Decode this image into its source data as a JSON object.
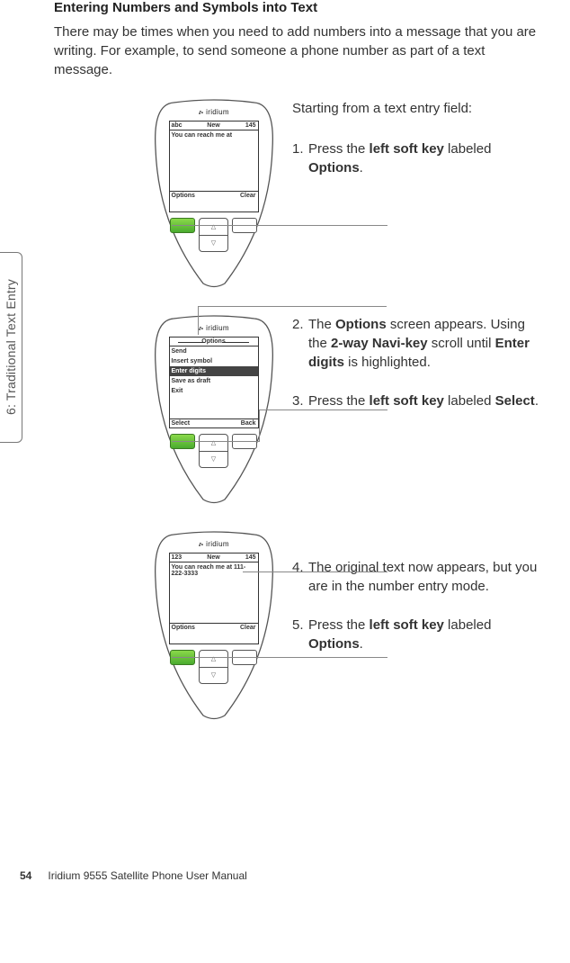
{
  "heading": "Entering Numbers and Symbols into Text",
  "intro": "There may be times when you need to add numbers into a message that you are writing. For example, to send someone a phone number as part of a text message.",
  "side_tab": "6: Traditional Text Entry",
  "brand": "iridium",
  "lead": "Starting from a text entry field:",
  "screen1": {
    "mode": "abc",
    "title": "New",
    "count": "145",
    "body": "You can reach me at",
    "foot_left": "Options",
    "foot_right": "Clear"
  },
  "screen2": {
    "title": "Options",
    "items": [
      "Send",
      "Insert symbol",
      "Enter digits",
      "Save as draft",
      "Exit"
    ],
    "highlight_index": 2,
    "foot_left": "Select",
    "foot_right": "Back"
  },
  "screen3": {
    "mode": "123",
    "title": "New",
    "count": "145",
    "body": "You can reach me at 111-222-3333",
    "foot_left": "Options",
    "foot_right": "Clear"
  },
  "steps": [
    {
      "n": "1.",
      "html": "Press the <b>left soft key</b> labeled <b>Options</b>."
    },
    {
      "n": "2.",
      "html": "The <b>Options</b> screen appears. Using the <b>2-way Navi-key</b> scroll until <b>Enter digits</b> is highlighted."
    },
    {
      "n": "3.",
      "html": "Press the <b>left soft key</b> labeled <b>Select</b>."
    },
    {
      "n": "4.",
      "html": "The original text now appears, but you are in the number entry mode."
    },
    {
      "n": "5.",
      "html": "Press the <b>left soft key</b> labeled <b>Options</b>."
    }
  ],
  "footer": {
    "page": "54",
    "title": "Iridium 9555 Satellite Phone User Manual"
  }
}
